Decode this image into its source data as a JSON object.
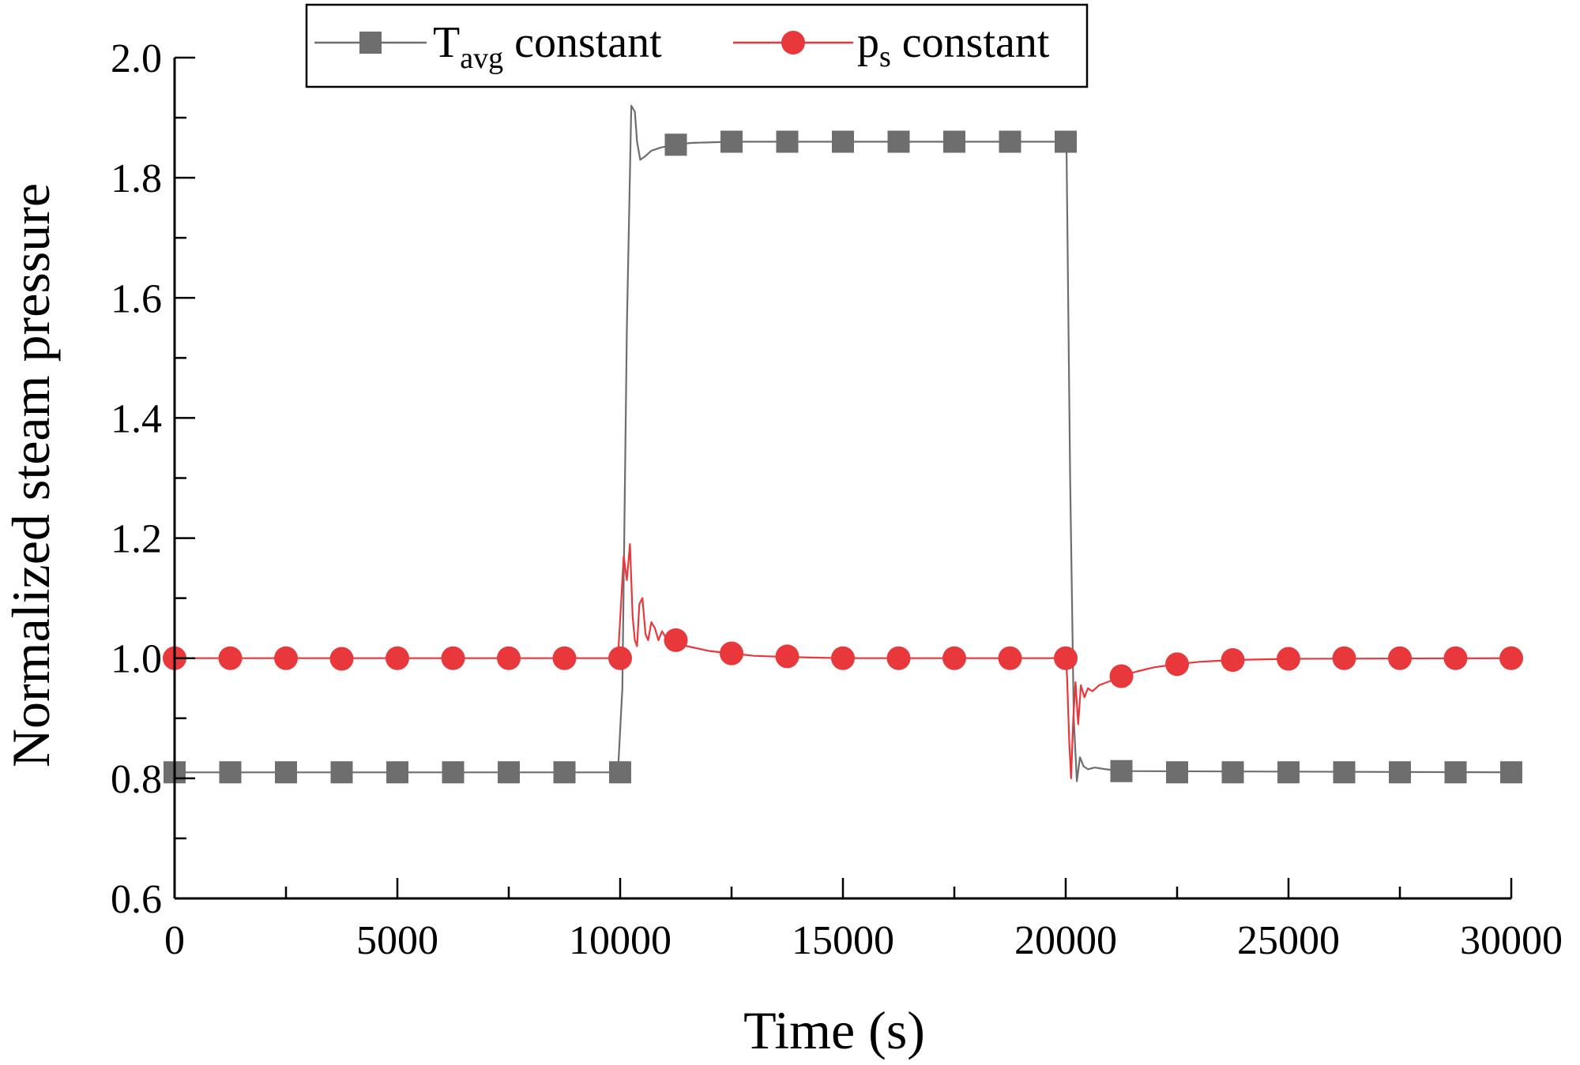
{
  "chart_data": {
    "type": "line",
    "title": "",
    "xlabel": "Time (s)",
    "ylabel": "Normalized steam pressure",
    "xlim": [
      0,
      30000
    ],
    "ylim": [
      0.6,
      2.0
    ],
    "xticks": [
      0,
      5000,
      10000,
      15000,
      20000,
      25000,
      30000
    ],
    "xtick_labels": [
      "0",
      "5000",
      "10000",
      "15000",
      "20000",
      "25000",
      "30000"
    ],
    "yticks": [
      0.6,
      0.8,
      1.0,
      1.2,
      1.4,
      1.6,
      1.8,
      2.0
    ],
    "ytick_labels": [
      "0.6",
      "0.8",
      "1.0",
      "1.2",
      "1.4",
      "1.6",
      "1.8",
      "2.0"
    ],
    "grid": false,
    "legend_position": "top-center",
    "series": [
      {
        "name": "Tavg constant",
        "legend_main": "T",
        "legend_sub": "avg",
        "legend_rest": " constant",
        "color": "#6e6e6e",
        "marker": "square",
        "line_x": [
          0,
          9950,
          10050,
          10150,
          10250,
          10330,
          10380,
          10450,
          10550,
          10700,
          10900,
          11200,
          11600,
          12500,
          20000,
          20020,
          20100,
          20180,
          20250,
          20320,
          20400,
          20500,
          20650,
          20900,
          21250,
          30000
        ],
        "line_y": [
          0.81,
          0.81,
          0.95,
          1.55,
          1.92,
          1.91,
          1.86,
          1.83,
          1.835,
          1.845,
          1.85,
          1.855,
          1.858,
          1.86,
          1.86,
          1.84,
          1.3,
          0.9,
          0.795,
          0.835,
          0.82,
          0.815,
          0.818,
          0.815,
          0.812,
          0.81
        ],
        "marker_x": [
          0,
          1250,
          2500,
          3750,
          5000,
          6250,
          7500,
          8750,
          10000,
          11250,
          12500,
          13750,
          15000,
          16250,
          17500,
          18750,
          20000,
          21250,
          22500,
          23750,
          25000,
          26250,
          27500,
          28750,
          30000
        ],
        "marker_y": [
          0.81,
          0.81,
          0.81,
          0.81,
          0.81,
          0.81,
          0.81,
          0.81,
          0.81,
          1.855,
          1.86,
          1.86,
          1.86,
          1.86,
          1.86,
          1.86,
          1.86,
          0.812,
          0.81,
          0.81,
          0.81,
          0.81,
          0.81,
          0.81,
          0.81
        ]
      },
      {
        "name": "ps constant",
        "legend_main": "p",
        "legend_sub": "s",
        "legend_rest": " constant",
        "color": "#e8383c",
        "marker": "circle",
        "line_x": [
          0,
          9950,
          10020,
          10080,
          10150,
          10220,
          10280,
          10330,
          10380,
          10430,
          10500,
          10570,
          10630,
          10700,
          10780,
          10860,
          10940,
          11020,
          11100,
          11250,
          11500,
          12000,
          12500,
          13000,
          13750,
          15000,
          20000,
          20030,
          20080,
          20120,
          20170,
          20220,
          20280,
          20340,
          20420,
          20500,
          20600,
          20750,
          21000,
          21250,
          21600,
          22000,
          22500,
          23000,
          23750,
          25000,
          30000
        ],
        "line_y": [
          1.0,
          1.0,
          1.09,
          1.17,
          1.13,
          1.19,
          1.07,
          1.03,
          1.02,
          1.09,
          1.1,
          1.04,
          1.03,
          1.06,
          1.05,
          1.03,
          1.045,
          1.035,
          1.03,
          1.03,
          1.02,
          1.012,
          1.008,
          1.004,
          1.002,
          1.0,
          1.0,
          0.97,
          0.86,
          0.8,
          0.9,
          0.96,
          0.89,
          0.955,
          0.935,
          0.95,
          0.945,
          0.955,
          0.962,
          0.97,
          0.978,
          0.985,
          0.99,
          0.994,
          0.997,
          0.999,
          1.0
        ],
        "marker_x": [
          0,
          1250,
          2500,
          3750,
          5000,
          6250,
          7500,
          8750,
          10000,
          11250,
          12500,
          13750,
          15000,
          16250,
          17500,
          18750,
          20000,
          21250,
          22500,
          23750,
          25000,
          26250,
          27500,
          28750,
          30000
        ],
        "marker_y": [
          1.0,
          1.0,
          1.0,
          0.999,
          1.0,
          1.0,
          1.0,
          1.0,
          1.0,
          1.03,
          1.008,
          1.003,
          1.0,
          1.0,
          1.0,
          1.0,
          1.0,
          0.97,
          0.99,
          0.997,
          0.999,
          1.0,
          1.0,
          1.0,
          1.0
        ]
      }
    ]
  }
}
